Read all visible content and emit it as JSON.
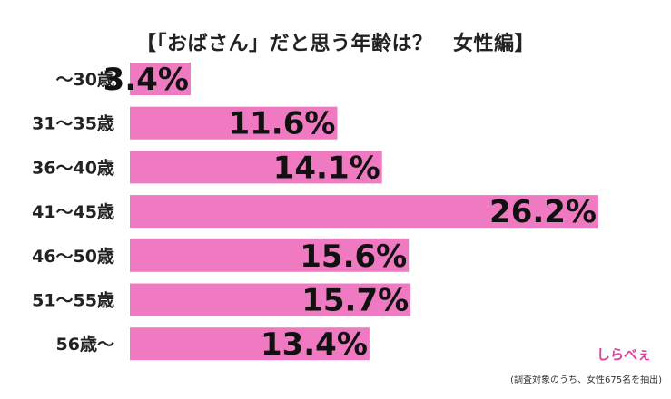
{
  "title": "【「おばさん」だと思う年齢は？　女性編】",
  "note": "(調査対象のうち、女性675名を抽出)",
  "logo_text": "しらべぇ",
  "bar_color": "#f07ac1",
  "chart_data": {
    "type": "bar",
    "orientation": "horizontal",
    "title": "【「おばさん」だと思う年齢は？　女性編】",
    "categories": [
      "〜30歳",
      "31〜35歳",
      "36〜40歳",
      "41〜45歳",
      "46〜50歳",
      "51〜55歳",
      "56歳〜"
    ],
    "values": [
      3.4,
      11.6,
      14.1,
      26.2,
      15.6,
      15.7,
      13.4
    ],
    "value_labels": [
      "3.4%",
      "11.6%",
      "14.1%",
      "26.2%",
      "15.6%",
      "15.7%",
      "13.4%"
    ],
    "xlim": [
      0,
      26.2
    ],
    "grid": false,
    "legend": "none"
  }
}
